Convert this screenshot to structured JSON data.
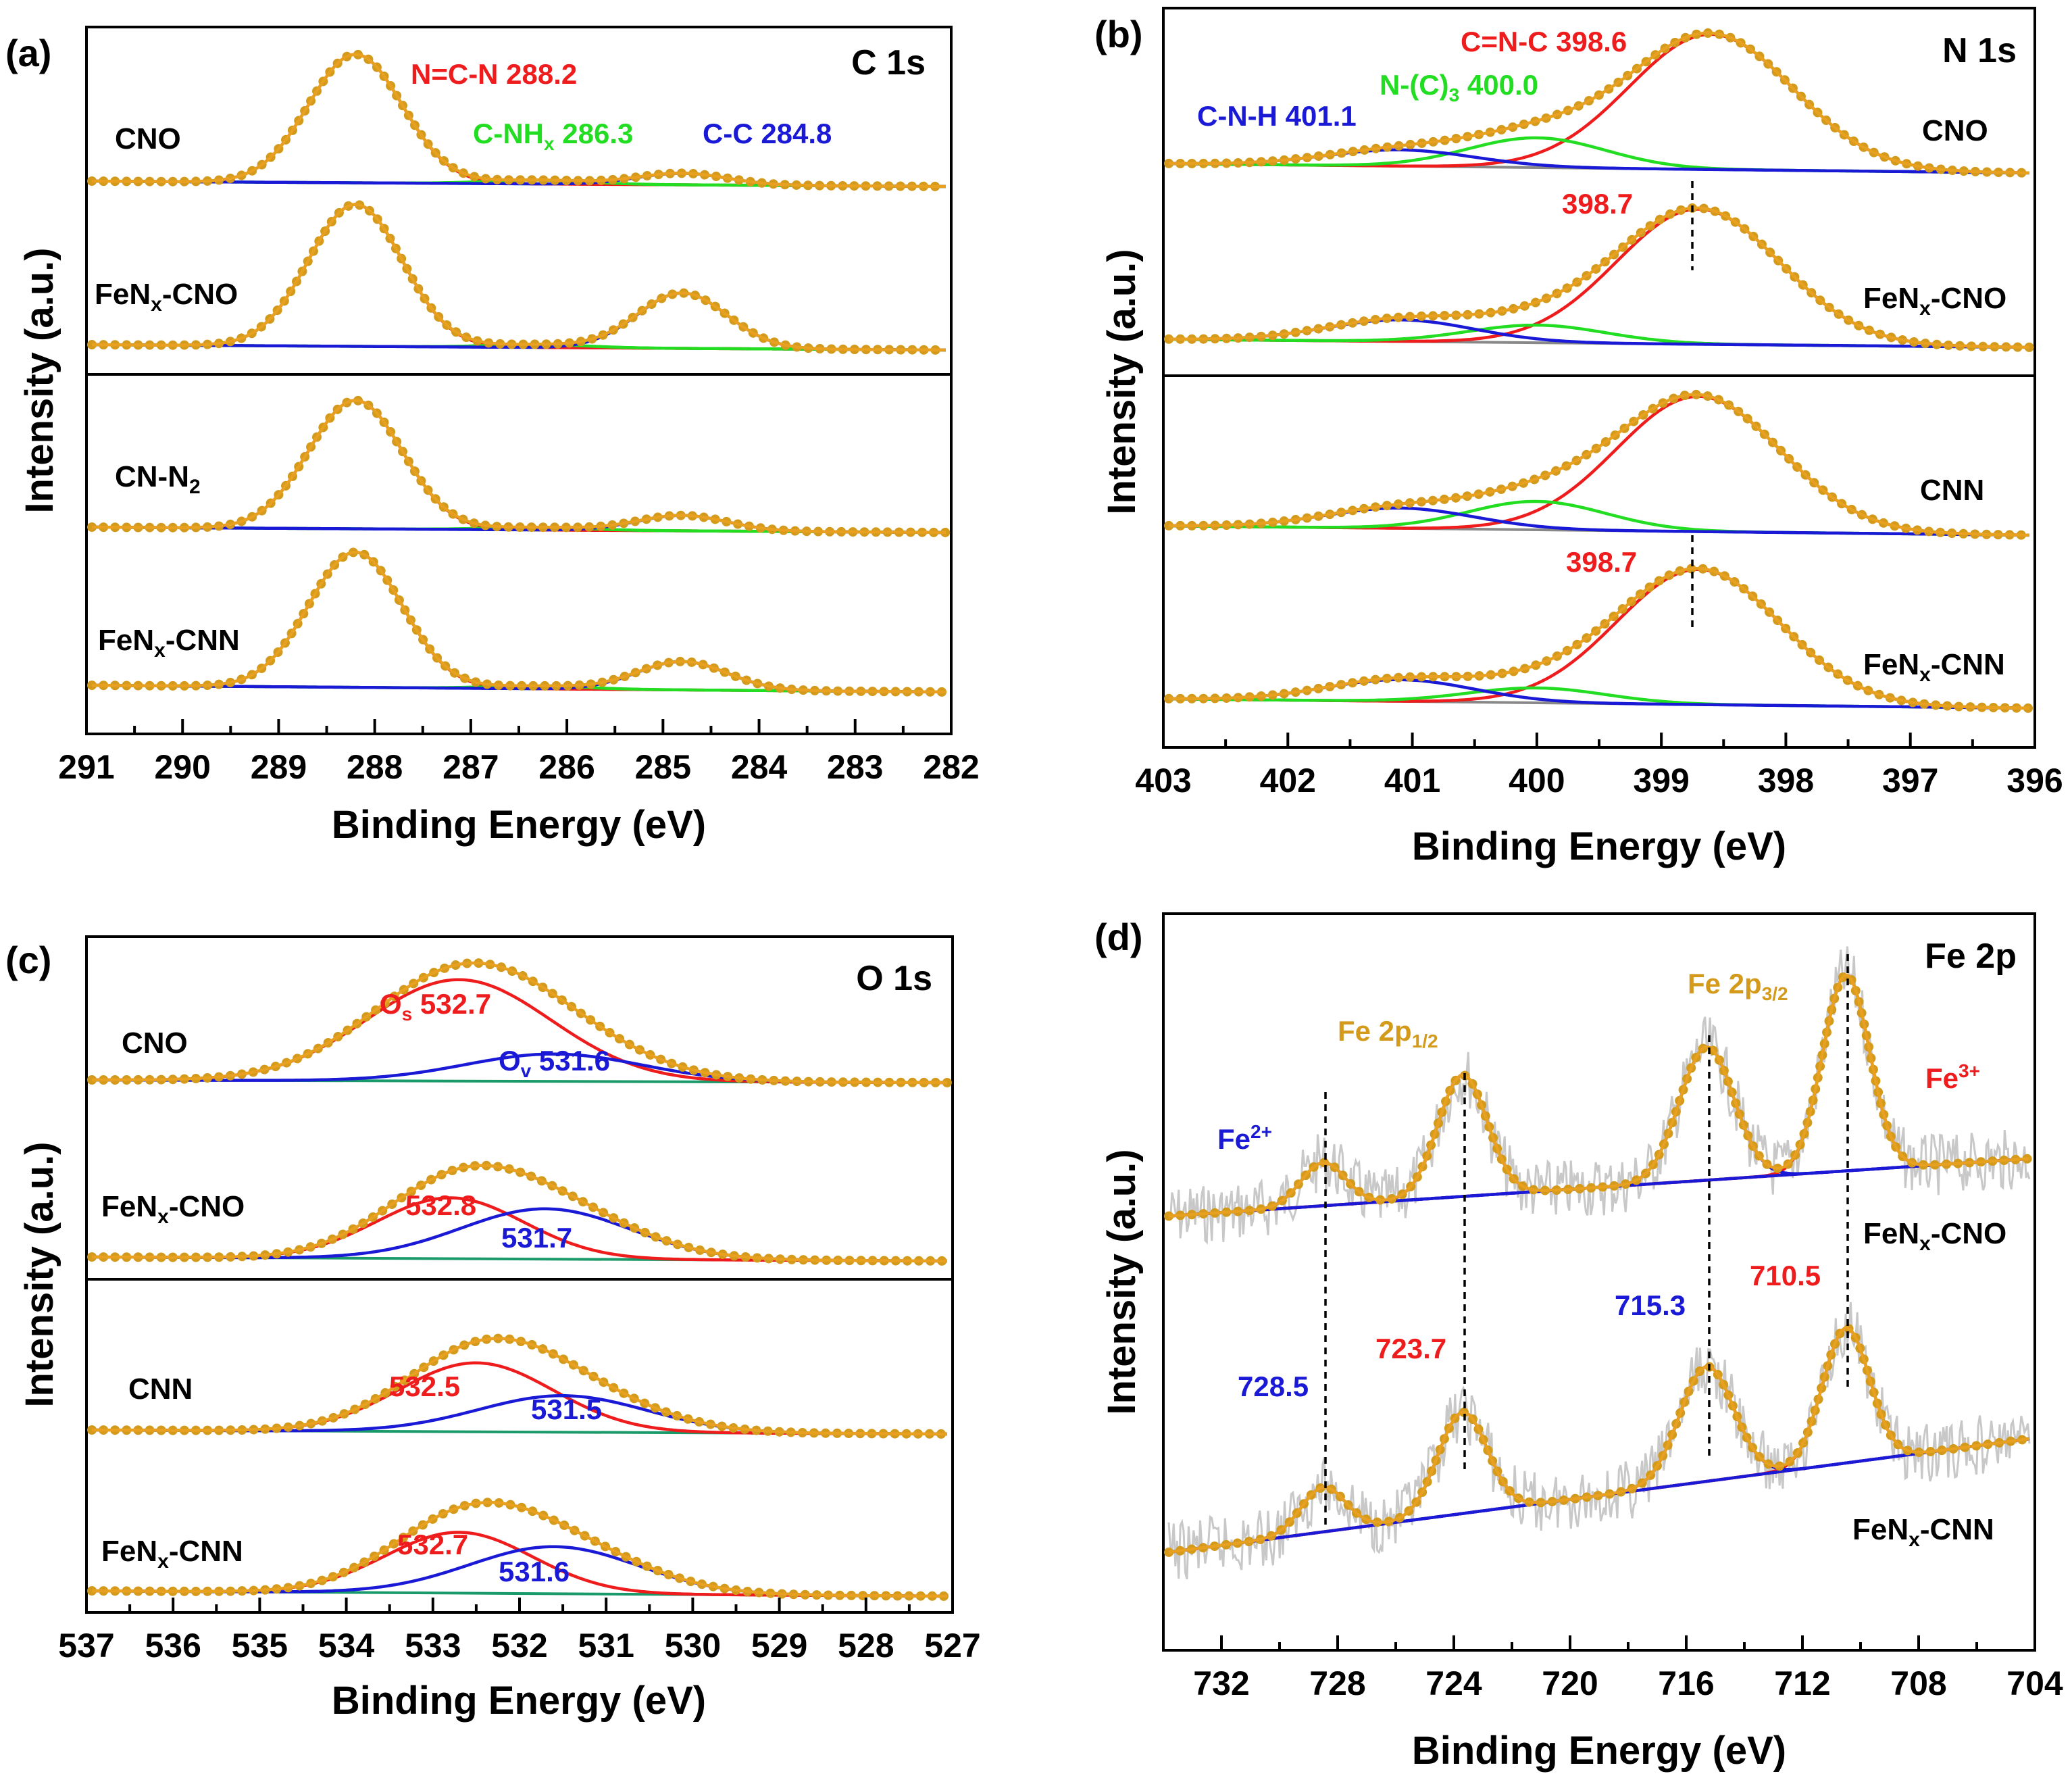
{
  "figure": {
    "colors": {
      "experimental": "#d49a1c",
      "envelope": "#d49a1c",
      "peak_red": "#ee1c1c",
      "peak_blue": "#1a1ad6",
      "peak_green": "#22dd22",
      "background": "#888888",
      "raw": "#c8c8c8"
    }
  },
  "chart_data": [
    {
      "panel": "(a)",
      "type": "line",
      "title": "C 1s",
      "xlabel": "Binding Energy (eV)",
      "ylabel": "Intensity (a.u.)",
      "xlim": [
        291,
        282
      ],
      "xticks": [
        "291",
        "290",
        "289",
        "288",
        "287",
        "286",
        "285",
        "284",
        "283",
        "282"
      ],
      "annotations": [
        {
          "text": "N=C-N 288.2",
          "color": "red"
        },
        {
          "text": "C-NHx 286.3",
          "color": "green"
        },
        {
          "text": "C-C 284.8",
          "color": "blue"
        }
      ],
      "series": [
        {
          "name": "CNO",
          "peaks": [
            {
              "center": 288.2,
              "height": 1.0,
              "fwhm": 1.15,
              "color": "red"
            },
            {
              "center": 286.3,
              "height": 0.03,
              "fwhm": 1.2,
              "color": "green"
            },
            {
              "center": 284.8,
              "height": 0.09,
              "fwhm": 1.1,
              "color": "blue"
            }
          ]
        },
        {
          "name": "FeNx-CNO",
          "peaks": [
            {
              "center": 288.2,
              "height": 1.0,
              "fwhm": 1.15,
              "color": "red"
            },
            {
              "center": 286.3,
              "height": 0.02,
              "fwhm": 1.2,
              "color": "green"
            },
            {
              "center": 284.8,
              "height": 0.39,
              "fwhm": 1.1,
              "color": "blue"
            }
          ]
        },
        {
          "name": "CN-N2",
          "peaks": [
            {
              "center": 288.2,
              "height": 1.0,
              "fwhm": 1.15,
              "color": "red"
            },
            {
              "center": 286.3,
              "height": 0.02,
              "fwhm": 1.2,
              "color": "green"
            },
            {
              "center": 284.8,
              "height": 0.12,
              "fwhm": 1.1,
              "color": "blue"
            }
          ]
        },
        {
          "name": "FeNx-CNN",
          "peaks": [
            {
              "center": 288.2,
              "height": 1.0,
              "fwhm": 1.15,
              "color": "red"
            },
            {
              "center": 286.3,
              "height": 0.02,
              "fwhm": 1.2,
              "color": "green"
            },
            {
              "center": 284.8,
              "height": 0.21,
              "fwhm": 1.1,
              "color": "blue"
            }
          ]
        }
      ],
      "samples": [
        "CNO",
        "FeNx-CNO",
        "CN-N2",
        "FeNx-CNN"
      ]
    },
    {
      "panel": "(b)",
      "type": "line",
      "title": "N 1s",
      "xlabel": "Binding Energy (eV)",
      "ylabel": "Intensity (a.u.)",
      "xlim": [
        403,
        396
      ],
      "xticks": [
        "403",
        "402",
        "401",
        "400",
        "399",
        "398",
        "397",
        "396"
      ],
      "annotations": [
        {
          "text": "C=N-C 398.6",
          "color": "red"
        },
        {
          "text": "N-(C)3 400.0",
          "color": "green"
        },
        {
          "text": "C-N-H 401.1",
          "color": "blue"
        },
        {
          "text": "398.7",
          "color": "red"
        },
        {
          "text": "398.7",
          "color": "red"
        }
      ],
      "series": [
        {
          "name": "CNO",
          "peaks": [
            {
              "center": 398.6,
              "height": 1.0,
              "fwhm": 1.55,
              "color": "red"
            },
            {
              "center": 400.0,
              "height": 0.22,
              "fwhm": 1.3,
              "color": "green"
            },
            {
              "center": 401.1,
              "height": 0.12,
              "fwhm": 1.4,
              "color": "blue"
            }
          ]
        },
        {
          "name": "FeNx-CNO",
          "peaks": [
            {
              "center": 398.7,
              "height": 1.0,
              "fwhm": 1.55,
              "color": "red"
            },
            {
              "center": 400.0,
              "height": 0.13,
              "fwhm": 1.3,
              "color": "green"
            },
            {
              "center": 401.1,
              "height": 0.16,
              "fwhm": 1.4,
              "color": "blue"
            }
          ]
        },
        {
          "name": "CNN",
          "peaks": [
            {
              "center": 398.7,
              "height": 1.0,
              "fwhm": 1.55,
              "color": "red"
            },
            {
              "center": 400.0,
              "height": 0.21,
              "fwhm": 1.3,
              "color": "green"
            },
            {
              "center": 401.1,
              "height": 0.15,
              "fwhm": 1.4,
              "color": "blue"
            }
          ]
        },
        {
          "name": "FeNx-CNN",
          "peaks": [
            {
              "center": 398.7,
              "height": 1.0,
              "fwhm": 1.55,
              "color": "red"
            },
            {
              "center": 400.0,
              "height": 0.11,
              "fwhm": 1.3,
              "color": "green"
            },
            {
              "center": 401.1,
              "height": 0.16,
              "fwhm": 1.4,
              "color": "blue"
            }
          ]
        }
      ],
      "samples": [
        "CNO",
        "FeNx-CNO",
        "CNN",
        "FeNx-CNN"
      ]
    },
    {
      "panel": "(c)",
      "type": "line",
      "title": "O 1s",
      "xlabel": "Binding Energy (eV)",
      "ylabel": "Intensity (a.u.)",
      "xlim": [
        537,
        527
      ],
      "xticks": [
        "537",
        "536",
        "535",
        "534",
        "533",
        "532",
        "531",
        "530",
        "529",
        "528",
        "527"
      ],
      "annotations": [
        {
          "text": "Os 532.7",
          "color": "red"
        },
        {
          "text": "Ov 531.6",
          "color": "blue"
        },
        {
          "text": "532.8",
          "color": "red"
        },
        {
          "text": "531.7",
          "color": "blue"
        },
        {
          "text": "532.5",
          "color": "red"
        },
        {
          "text": "531.5",
          "color": "blue"
        },
        {
          "text": "532.7",
          "color": "red"
        },
        {
          "text": "531.6",
          "color": "blue"
        }
      ],
      "series": [
        {
          "name": "CNO",
          "peaks": [
            {
              "center": 532.7,
              "height": 1.0,
              "fwhm": 2.5,
              "color": "red"
            },
            {
              "center": 531.6,
              "height": 0.27,
              "fwhm": 2.4,
              "color": "blue"
            }
          ]
        },
        {
          "name": "FeNx-CNO",
          "peaks": [
            {
              "center": 532.8,
              "height": 0.75,
              "fwhm": 2.0,
              "color": "red"
            },
            {
              "center": 531.7,
              "height": 0.62,
              "fwhm": 2.3,
              "color": "blue"
            }
          ]
        },
        {
          "name": "CNN",
          "peaks": [
            {
              "center": 532.5,
              "height": 0.85,
              "fwhm": 2.1,
              "color": "red"
            },
            {
              "center": 531.5,
              "height": 0.45,
              "fwhm": 2.3,
              "color": "blue"
            }
          ]
        },
        {
          "name": "FeNx-CNN",
          "peaks": [
            {
              "center": 532.7,
              "height": 0.75,
              "fwhm": 2.0,
              "color": "red"
            },
            {
              "center": 531.6,
              "height": 0.58,
              "fwhm": 2.3,
              "color": "blue"
            }
          ]
        }
      ],
      "samples": [
        "CNO",
        "FeNx-CNO",
        "CNN",
        "FeNx-CNN"
      ]
    },
    {
      "panel": "(d)",
      "type": "line",
      "title": "Fe 2p",
      "xlabel": "Binding Energy (eV)",
      "ylabel": "Intensity (a.u.)",
      "xlim": [
        734,
        704
      ],
      "xticks": [
        "732",
        "728",
        "724",
        "720",
        "716",
        "712",
        "708",
        "704"
      ],
      "annotations": [
        {
          "text": "Fe 2p1/2",
          "color": "orange"
        },
        {
          "text": "Fe 2p3/2",
          "color": "orange"
        },
        {
          "text": "Fe2+",
          "color": "blue"
        },
        {
          "text": "Fe3+",
          "color": "red"
        },
        {
          "text": "728.5",
          "color": "blue"
        },
        {
          "text": "723.7",
          "color": "red"
        },
        {
          "text": "715.3",
          "color": "blue"
        },
        {
          "text": "710.5",
          "color": "red"
        }
      ],
      "series": [
        {
          "name": "FeNx-CNO",
          "peaks": [
            {
              "center": 710.5,
              "height": 1.0,
              "fwhm": 1.9,
              "color": "red"
            },
            {
              "center": 723.7,
              "height": 0.62,
              "fwhm": 2.0,
              "color": "red"
            },
            {
              "center": 715.3,
              "height": 0.68,
              "fwhm": 2.2,
              "color": "blue"
            },
            {
              "center": 728.5,
              "height": 0.22,
              "fwhm": 1.8,
              "color": "blue"
            }
          ]
        },
        {
          "name": "FeNx-CNN",
          "peaks": [
            {
              "center": 710.5,
              "height": 1.0,
              "fwhm": 1.9,
              "color": "red"
            },
            {
              "center": 723.7,
              "height": 0.75,
              "fwhm": 2.0,
              "color": "red"
            },
            {
              "center": 715.3,
              "height": 0.85,
              "fwhm": 2.2,
              "color": "blue"
            },
            {
              "center": 728.5,
              "height": 0.33,
              "fwhm": 1.8,
              "color": "blue"
            }
          ]
        }
      ],
      "samples": [
        "FeNx-CNO",
        "FeNx-CNN"
      ]
    }
  ]
}
